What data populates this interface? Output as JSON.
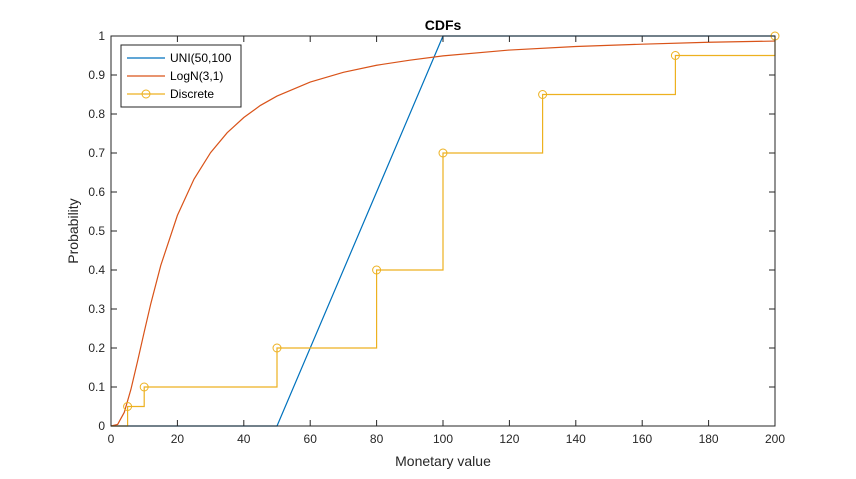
{
  "chart_data": {
    "type": "line",
    "title": "CDFs",
    "xlabel": "Monetary value",
    "ylabel": "Probability",
    "xlim": [
      0,
      200
    ],
    "ylim": [
      0,
      1
    ],
    "x_ticks": [
      0,
      20,
      40,
      60,
      80,
      100,
      120,
      140,
      160,
      180,
      200
    ],
    "x_tick_labels": [
      "0",
      "20",
      "40",
      "60",
      "80",
      "100",
      "120",
      "140",
      "160",
      "180",
      "200"
    ],
    "y_ticks": [
      0,
      0.1,
      0.2,
      0.3,
      0.4,
      0.5,
      0.6,
      0.7,
      0.8,
      0.9,
      1
    ],
    "y_tick_labels": [
      "0",
      "0.1",
      "0.2",
      "0.3",
      "0.4",
      "0.5",
      "0.6",
      "0.7",
      "0.8",
      "0.9",
      "1"
    ],
    "grid": false,
    "legend_position": "top-left",
    "series": [
      {
        "name": "UNI(50,100",
        "color": "#0072BD",
        "style": "line",
        "x": [
          0,
          50,
          100,
          200
        ],
        "y": [
          0,
          0,
          1,
          1
        ]
      },
      {
        "name": "LogN(3,1)",
        "color": "#D95319",
        "style": "line",
        "x": [
          0,
          2,
          4,
          6,
          8,
          10,
          12,
          15,
          20,
          25,
          30,
          35,
          40,
          45,
          50,
          60,
          70,
          80,
          90,
          100,
          120,
          140,
          160,
          180,
          200
        ],
        "y": [
          0,
          0.004,
          0.035,
          0.094,
          0.166,
          0.241,
          0.314,
          0.412,
          0.54,
          0.633,
          0.701,
          0.752,
          0.791,
          0.822,
          0.846,
          0.882,
          0.907,
          0.925,
          0.938,
          0.949,
          0.964,
          0.973,
          0.979,
          0.984,
          0.987
        ]
      },
      {
        "name": "Discrete",
        "color": "#EDB120",
        "style": "stairs-markers",
        "x": [
          0,
          5,
          10,
          50,
          80,
          100,
          130,
          170,
          200
        ],
        "y": [
          0,
          0.05,
          0.1,
          0.2,
          0.4,
          0.7,
          0.85,
          0.95,
          1.0
        ],
        "marker_x": [
          5,
          10,
          50,
          80,
          100,
          130,
          170,
          200
        ],
        "marker_y": [
          0.05,
          0.1,
          0.2,
          0.4,
          0.7,
          0.85,
          0.95,
          1.0
        ]
      }
    ]
  }
}
